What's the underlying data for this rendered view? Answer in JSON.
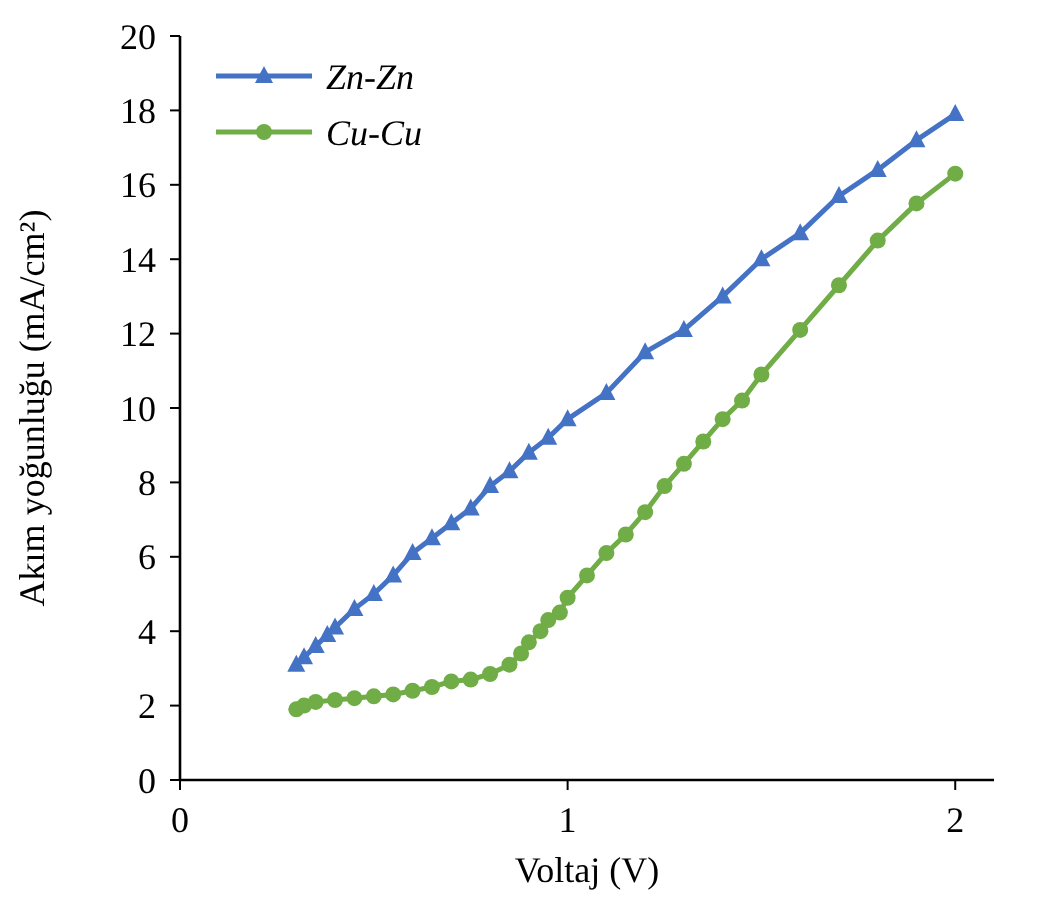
{
  "chart_data": {
    "type": "line",
    "xlabel": "Voltaj (V)",
    "ylabel": "Akım yoğunluğu (mA/cm²)",
    "xlim": [
      0,
      2.1
    ],
    "xticks": [
      0,
      1,
      2
    ],
    "ylim": [
      0,
      20
    ],
    "yticks": [
      0,
      2,
      4,
      6,
      8,
      10,
      12,
      14,
      16,
      18,
      20
    ],
    "grid": false,
    "legend": "top left",
    "series": [
      {
        "name": "Zn-Zn",
        "color": "#4472c4",
        "marker": "triangle",
        "x": [
          0.3,
          0.32,
          0.35,
          0.38,
          0.4,
          0.45,
          0.5,
          0.55,
          0.6,
          0.65,
          0.7,
          0.75,
          0.8,
          0.85,
          0.9,
          0.95,
          1.0,
          1.1,
          1.2,
          1.3,
          1.4,
          1.5,
          1.6,
          1.7,
          1.8,
          1.9,
          2.0
        ],
        "values": [
          3.1,
          3.3,
          3.6,
          3.9,
          4.1,
          4.6,
          5.0,
          5.5,
          6.1,
          6.5,
          6.9,
          7.3,
          7.9,
          8.3,
          8.8,
          9.2,
          9.7,
          10.4,
          11.5,
          12.1,
          13.0,
          14.0,
          14.7,
          15.7,
          16.4,
          17.2,
          17.9
        ]
      },
      {
        "name": "Cu-Cu",
        "color": "#70ad47",
        "marker": "circle",
        "x": [
          0.3,
          0.32,
          0.35,
          0.4,
          0.45,
          0.5,
          0.55,
          0.6,
          0.65,
          0.7,
          0.75,
          0.8,
          0.85,
          0.88,
          0.9,
          0.93,
          0.95,
          0.98,
          1.0,
          1.05,
          1.1,
          1.15,
          1.2,
          1.25,
          1.3,
          1.35,
          1.4,
          1.45,
          1.5,
          1.6,
          1.7,
          1.8,
          1.9,
          2.0
        ],
        "values": [
          1.9,
          2.0,
          2.1,
          2.15,
          2.2,
          2.25,
          2.3,
          2.4,
          2.5,
          2.65,
          2.7,
          2.85,
          3.1,
          3.4,
          3.7,
          4.0,
          4.3,
          4.5,
          4.9,
          5.5,
          6.1,
          6.6,
          7.2,
          7.9,
          8.5,
          9.1,
          9.7,
          10.2,
          10.9,
          12.1,
          13.3,
          14.5,
          15.5,
          16.3
        ]
      }
    ]
  }
}
